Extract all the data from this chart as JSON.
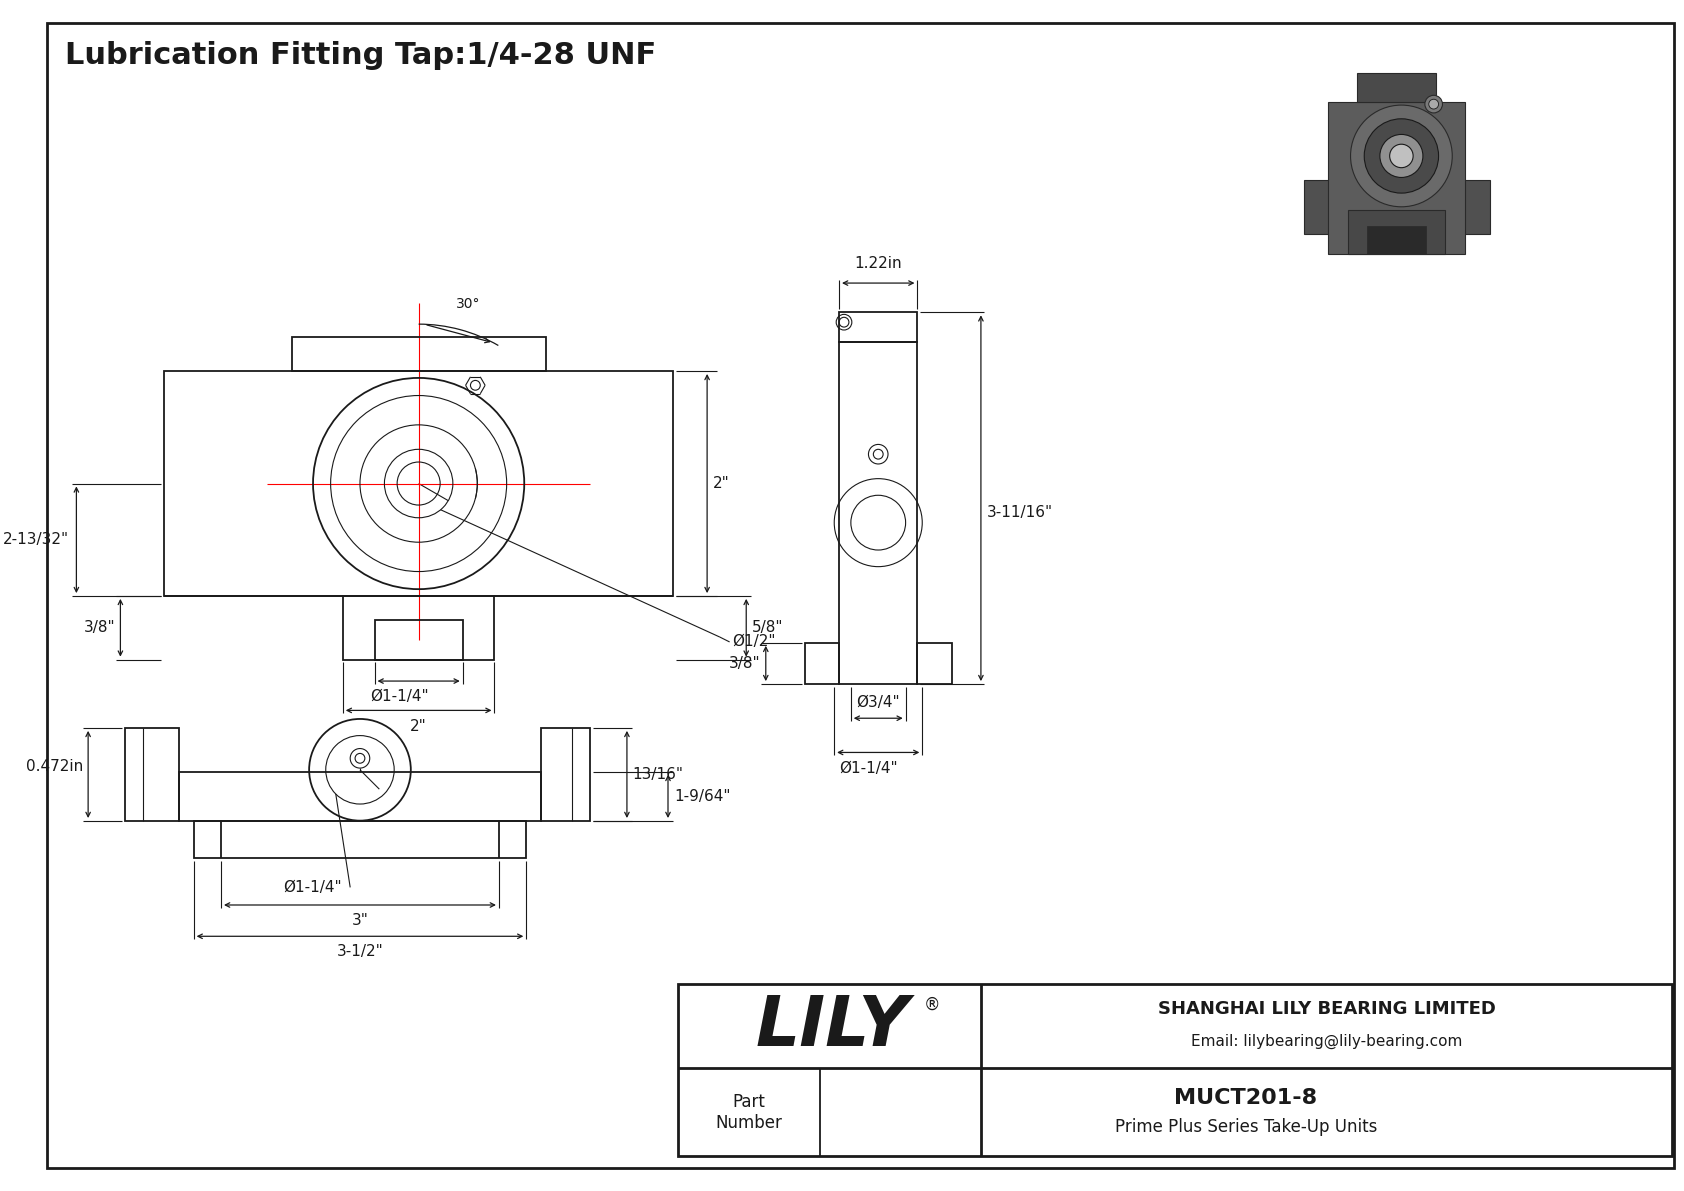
{
  "title": "Lubrication Fitting Tap:1/4-28 UNF",
  "bg_color": "#ffffff",
  "line_color": "#1a1a1a",
  "red_color": "#ff0000",
  "company_name": "SHANGHAI LILY BEARING LIMITED",
  "company_email": "Email: lilybearing@lily-bearing.com",
  "part_label": "Part\nNumber",
  "part_number": "MUCT201-8",
  "part_series": "Prime Plus Series Take-Up Units",
  "lily_logo": "LILY",
  "lily_registered": "®",
  "dim_30deg": "30°",
  "dim_2in": "2\"",
  "dim_213_32": "2-13/32\"",
  "dim_3_8_front": "3/8\"",
  "dim_5_8": "5/8\"",
  "dim_phi_1_2": "Ø1/2\"",
  "dim_phi_1_1_4_front": "Ø1-1/4\"",
  "dim_2in_slot": "2\"",
  "dim_0472": "0.472in",
  "dim_13_16": "13/16\"",
  "dim_1_9_64": "1-9/64\"",
  "dim_phi_1_1_4_bot": "Ø1-1/4\"",
  "dim_3in": "3\"",
  "dim_3_1_2": "3-1/2\"",
  "dim_1_22": "1.22in",
  "dim_3_11_16": "3-11/16\"",
  "dim_3_8_right": "3/8\"",
  "dim_phi_3_4": "Ø3/4\"",
  "dim_phi_1_1_4_right": "Ø1-1/4\""
}
